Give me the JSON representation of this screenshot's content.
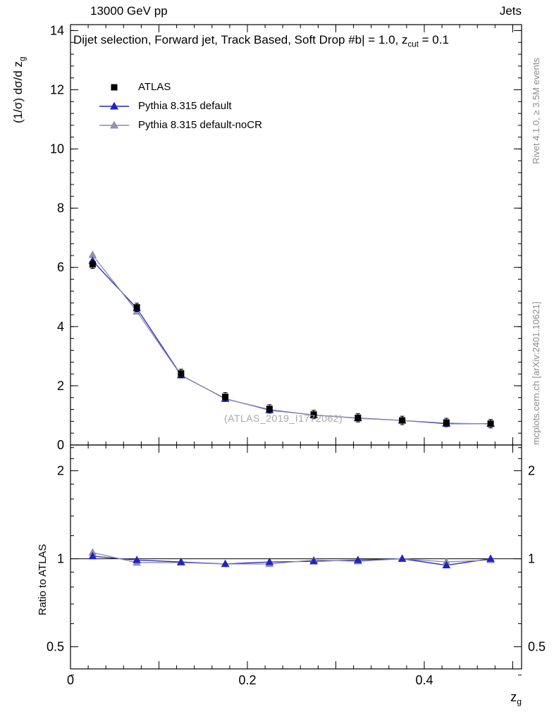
{
  "header": {
    "beam": "13000 GeV pp",
    "category": "Jets"
  },
  "plot_title": {
    "pre": "Dijet selection, Forward jet, Track Based, Soft Drop #b| = 1.0, z",
    "sub": "cut",
    "post": " = 0.1"
  },
  "axes": {
    "y_label": {
      "pre": "(1/σ) dσ/d z",
      "sub": "g"
    },
    "x_label": {
      "pre": "z",
      "sub": "g"
    },
    "ratio_label": "Ratio to ATLAS"
  },
  "side_notes": {
    "rivet": "Rivet 4.1.0, ≥ 3.5M events",
    "mcplots": "mcplots.cern.ch [arXiv:2401.10621]"
  },
  "watermark": "(ATLAS_2019_I1772062)",
  "legend": {
    "items": [
      {
        "label": "ATLAS",
        "marker": "square",
        "color": "#000000",
        "line": false
      },
      {
        "label": "Pythia 8.315 default",
        "marker": "triangle",
        "color": "#2222c2",
        "line": true,
        "line_color": "#2222c2"
      },
      {
        "label": "Pythia 8.315 default-noCR",
        "marker": "triangle",
        "color": "#9292b2",
        "line": true,
        "line_color": "#8a8aa6"
      }
    ]
  },
  "chart_data": {
    "type": "line",
    "title": "Dijet selection, Forward jet, Track Based, Soft Drop #b| = 1.0, z_cut = 0.1",
    "xlabel": "z_g",
    "ylabel": "(1/σ) dσ/d z_g",
    "x": [
      0.025,
      0.075,
      0.125,
      0.175,
      0.225,
      0.275,
      0.325,
      0.375,
      0.425,
      0.475
    ],
    "series": [
      {
        "name": "ATLAS",
        "marker": "square",
        "color": "#000000",
        "line": false,
        "values": [
          6.1,
          4.65,
          2.42,
          1.63,
          1.22,
          1.03,
          0.92,
          0.83,
          0.76,
          0.72
        ]
      },
      {
        "name": "Pythia 8.315 default",
        "marker": "triangle",
        "color": "#2222c2",
        "line": true,
        "line_color": "#2222c2",
        "values": [
          6.22,
          4.62,
          2.36,
          1.56,
          1.19,
          1.01,
          0.91,
          0.83,
          0.72,
          0.72
        ]
      },
      {
        "name": "Pythia 8.315 default-noCR",
        "marker": "triangle",
        "color": "#9292b2",
        "line": true,
        "line_color": "#8a8aa6",
        "values": [
          6.42,
          4.51,
          2.35,
          1.57,
          1.17,
          1.02,
          0.9,
          0.83,
          0.74,
          0.71
        ]
      }
    ],
    "ratio": {
      "ylabel": "Ratio to ATLAS",
      "reference": "ATLAS",
      "series": [
        {
          "name": "Pythia 8.315 default",
          "marker": "triangle",
          "color": "#2222c2",
          "line_color": "#2222c2",
          "values": [
            1.02,
            0.99,
            0.975,
            0.96,
            0.975,
            0.98,
            0.99,
            1.0,
            0.95,
            1.0
          ]
        },
        {
          "name": "Pythia 8.315 default-noCR",
          "marker": "triangle",
          "color": "#9292b2",
          "line_color": "#8a8aa6",
          "values": [
            1.05,
            0.97,
            0.97,
            0.96,
            0.96,
            0.99,
            0.98,
            1.0,
            0.975,
            0.99
          ]
        }
      ]
    },
    "xlim": [
      0,
      0.51
    ],
    "ylim": [
      0,
      14.2
    ],
    "ratio_ylim": [
      0.42,
      2.45
    ],
    "ratio_log": true,
    "xticks": [
      0,
      0.2,
      0.4
    ],
    "yticks": [
      0,
      2,
      4,
      6,
      8,
      10,
      12,
      14
    ],
    "ratio_yticks": [
      0.5,
      1,
      2
    ],
    "ratio_yticks_minor": [
      0.4,
      0.6,
      0.7,
      0.8,
      0.9,
      1.2,
      1.4,
      1.6,
      1.8,
      2.2,
      2.4
    ],
    "x_major_step": 0.1,
    "x_minor_step": 0.02,
    "y_minor_step": 0.4,
    "grid": false,
    "legend_position": "top-left"
  }
}
